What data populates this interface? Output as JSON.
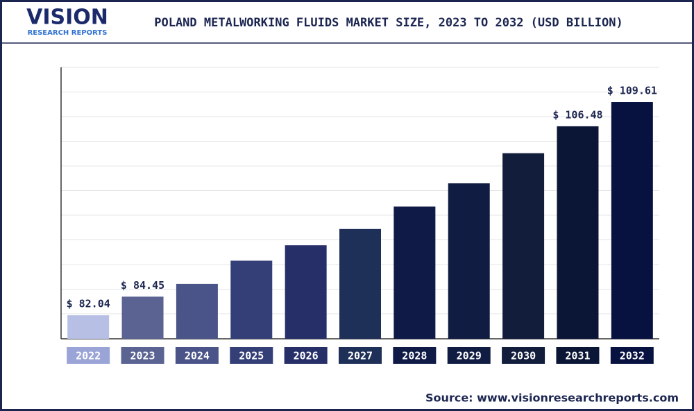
{
  "logo": {
    "name": "VISION",
    "tagline": "RESEARCH REPORTS"
  },
  "chart_data": {
    "type": "bar",
    "title": "POLAND METALWORKING FLUIDS MARKET SIZE, 2023 TO 2032 (USD BILLION)",
    "categories": [
      "2022",
      "2023",
      "2024",
      "2025",
      "2026",
      "2027",
      "2028",
      "2029",
      "2030",
      "2031",
      "2032"
    ],
    "values": [
      82.04,
      84.45,
      86.1,
      89.1,
      91.1,
      93.2,
      96.1,
      99.1,
      103.0,
      106.48,
      109.61
    ],
    "value_labels": [
      "$ 82.04",
      "$ 84.45",
      null,
      null,
      null,
      null,
      null,
      null,
      null,
      "$ 106.48",
      "$ 109.61"
    ],
    "colors": [
      "#b7c0e4",
      "#5a6391",
      "#4a5488",
      "#343f77",
      "#262f68",
      "#1f3058",
      "#101a47",
      "#111c42",
      "#121d3c",
      "#0b1535",
      "#071240"
    ],
    "label_colors": [
      "#9aa4d6",
      "#5a6391",
      "#4a5488",
      "#343f77",
      "#262f68",
      "#1f3058",
      "#101a47",
      "#111c42",
      "#121d3c",
      "#0b1535",
      "#071240"
    ],
    "ylim": [
      79,
      114.1
    ],
    "source": "Source: www.visionresearchreports.com"
  }
}
